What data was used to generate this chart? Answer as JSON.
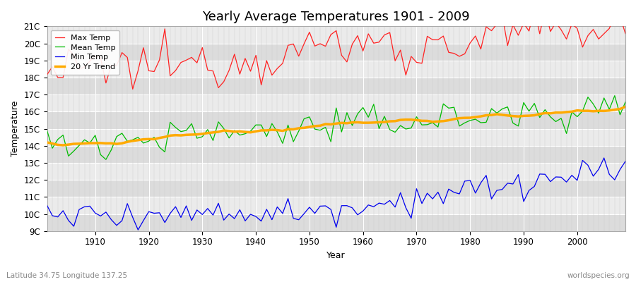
{
  "title": "Yearly Average Temperatures 1901 - 2009",
  "xlabel": "Year",
  "ylabel": "Temperature",
  "lat_lon_label": "Latitude 34.75 Longitude 137.25",
  "source_label": "worldspecies.org",
  "ylim": [
    9,
    21
  ],
  "ytick_labels": [
    "9C",
    "10C",
    "11C",
    "12C",
    "13C",
    "14C",
    "15C",
    "16C",
    "17C",
    "18C",
    "19C",
    "20C",
    "21C"
  ],
  "ytick_values": [
    9,
    10,
    11,
    12,
    13,
    14,
    15,
    16,
    17,
    18,
    19,
    20,
    21
  ],
  "xlim": [
    1901,
    2009
  ],
  "bg_color_light": "#ebebeb",
  "bg_color_dark": "#dcdcdc",
  "fig_bg_color": "#ffffff",
  "grid_color_major": "#ffffff",
  "grid_color_minor": "#e0e0e0",
  "legend_labels": [
    "Max Temp",
    "Mean Temp",
    "Min Temp",
    "20 Yr Trend"
  ],
  "legend_colors": [
    "#ff2222",
    "#00bb00",
    "#0000ee",
    "#ffaa00"
  ],
  "line_colors": {
    "max": "#ff2222",
    "mean": "#00bb00",
    "min": "#0000ee",
    "trend": "#ffaa00"
  },
  "start_year": 1901,
  "end_year": 2009
}
